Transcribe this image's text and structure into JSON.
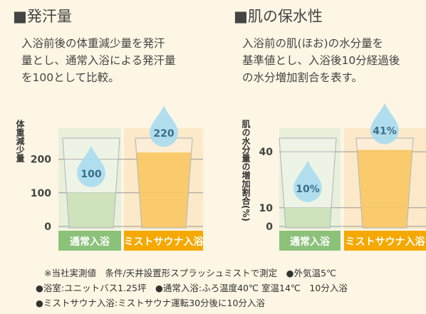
{
  "chart_data": [
    {
      "type": "bar",
      "title": "■発汗量",
      "description": [
        "入浴前後の体重減少量を発汗",
        "量とし、通常入浴による発汗量",
        "を100として比較。"
      ],
      "ylabel": "体重減少量",
      "categories": [
        "通常入浴",
        "ミストサウナ入浴"
      ],
      "values": [
        100,
        220
      ],
      "colors": [
        "#b9d79f",
        "#f8b52b"
      ],
      "ylim": [
        0,
        250
      ],
      "yticks": [
        0,
        100,
        200
      ],
      "grid": true
    },
    {
      "type": "bar",
      "title": "■肌の保水性",
      "description": [
        "入浴前の肌(ほお)の水分量を",
        "基準値とし、入浴後10分経過後",
        "の水分増加割合を表す。"
      ],
      "ylabel": "肌の水分量の増加割合(%)",
      "categories": [
        "通常入浴",
        "ミストサウナ入浴"
      ],
      "values": [
        10,
        41
      ],
      "value_labels": [
        "10%",
        "41%"
      ],
      "colors": [
        "#b9d79f",
        "#f8b52b"
      ],
      "ylim": [
        0,
        45
      ],
      "yticks": [
        0,
        10,
        40
      ],
      "grid": true
    }
  ],
  "notes": [
    "※当社実測値　条件/天井設置形スプラッシュミストで測定　●外気温5℃",
    "●浴室:ユニットバス1.25坪　●通常入浴:ふろ温度40℃ 室温14℃　10分入浴",
    "●ミストサウナ入浴:ミストサウナ運転30分後に10分入浴"
  ]
}
